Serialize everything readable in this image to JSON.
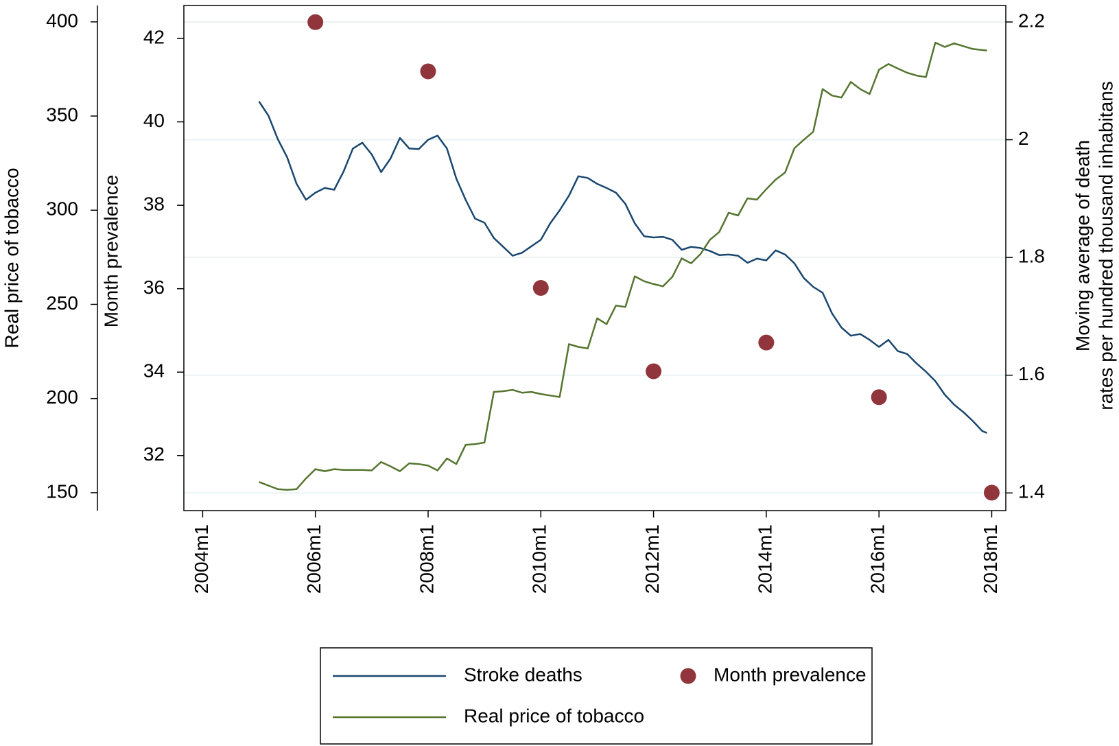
{
  "chart_data": {
    "type": "line",
    "ylabel": "Real price of tobacco",
    "y3label": "Month prevalence",
    "y2label": [
      "Moving average of death",
      "rates per hundred thousand inhabitans"
    ],
    "xlim": [
      524,
      699
    ],
    "xticks": [
      {
        "value": 528,
        "label": "2004m1"
      },
      {
        "value": 552,
        "label": "2006m1"
      },
      {
        "value": 576,
        "label": "2008m1"
      },
      {
        "value": 600,
        "label": "2010m1"
      },
      {
        "value": 624,
        "label": "2012m1"
      },
      {
        "value": 648,
        "label": "2014m1"
      },
      {
        "value": 672,
        "label": "2016m1"
      },
      {
        "value": 696,
        "label": "2018m1"
      }
    ],
    "ylim": [
      140.5,
      408.7
    ],
    "yticks": [
      150,
      200,
      250,
      300,
      350,
      400
    ],
    "y3lim": [
      30.68,
      42.79
    ],
    "y3ticks": [
      32,
      34,
      36,
      38,
      40,
      42
    ],
    "y2lim": [
      1.37,
      2.228
    ],
    "y2ticks": [
      1.4,
      1.6,
      1.8,
      2,
      2.2
    ],
    "grid": "y2",
    "series": [
      {
        "name": "Stroke deaths",
        "color": "#1a476f",
        "axis": "y2",
        "x": [
          540,
          542,
          544,
          546,
          548,
          550,
          552,
          554,
          556,
          558,
          560,
          562,
          564,
          566,
          568,
          570,
          572,
          574,
          576,
          578,
          580,
          582,
          584,
          586,
          588,
          590,
          592,
          594,
          596,
          598,
          600,
          602,
          604,
          606,
          608,
          610,
          612,
          614,
          616,
          618,
          620,
          622,
          624,
          626,
          628,
          630,
          632,
          634,
          636,
          638,
          640,
          642,
          644,
          646,
          648,
          650,
          652,
          654,
          656,
          658,
          660,
          662,
          664,
          666,
          668,
          670,
          672,
          674,
          676,
          678,
          680,
          682,
          684,
          686,
          688,
          690,
          692,
          694,
          695
        ],
        "values": [
          2.065,
          2.041,
          2.001,
          1.97,
          1.925,
          1.898,
          1.91,
          1.918,
          1.915,
          1.946,
          1.985,
          1.995,
          1.975,
          1.945,
          1.968,
          2.003,
          1.985,
          1.984,
          2.0,
          2.007,
          1.985,
          1.934,
          1.898,
          1.866,
          1.859,
          1.833,
          1.818,
          1.803,
          1.808,
          1.819,
          1.83,
          1.858,
          1.88,
          1.905,
          1.938,
          1.935,
          1.925,
          1.918,
          1.91,
          1.891,
          1.858,
          1.836,
          1.834,
          1.835,
          1.83,
          1.813,
          1.818,
          1.816,
          1.811,
          1.804,
          1.805,
          1.803,
          1.791,
          1.798,
          1.795,
          1.812,
          1.805,
          1.79,
          1.765,
          1.75,
          1.74,
          1.705,
          1.681,
          1.667,
          1.67,
          1.66,
          1.648,
          1.66,
          1.641,
          1.636,
          1.62,
          1.606,
          1.59,
          1.567,
          1.55,
          1.537,
          1.522,
          1.505,
          1.502
        ]
      },
      {
        "name": "Month prevalence",
        "color": "#90353b",
        "axis": "y3",
        "type": "scatter",
        "x": [
          552,
          576,
          600,
          624,
          648,
          672,
          696
        ],
        "values": [
          42.39,
          41.21,
          36.02,
          34.02,
          34.71,
          33.4,
          31.11
        ]
      },
      {
        "name": "Real price of tobacco",
        "color": "#55752f",
        "axis": "y",
        "x": [
          540,
          542,
          544,
          546,
          548,
          550,
          552,
          554,
          556,
          558,
          560,
          562,
          564,
          566,
          568,
          570,
          572,
          574,
          576,
          578,
          580,
          582,
          584,
          586,
          588,
          590,
          592,
          594,
          596,
          598,
          600,
          602,
          604,
          606,
          608,
          610,
          612,
          614,
          616,
          618,
          620,
          622,
          624,
          626,
          628,
          630,
          632,
          634,
          636,
          638,
          640,
          642,
          644,
          646,
          648,
          650,
          652,
          654,
          656,
          658,
          660,
          662,
          664,
          666,
          668,
          670,
          672,
          674,
          676,
          678,
          680,
          682,
          684,
          686,
          688,
          690,
          692,
          695
        ],
        "values": [
          155.7,
          153.8,
          151.9,
          151.5,
          151.9,
          157.6,
          162.5,
          161.4,
          162.5,
          162.1,
          162.1,
          162.1,
          161.8,
          166.3,
          164.0,
          161.4,
          165.6,
          165.2,
          164.4,
          161.8,
          168.2,
          165.2,
          175.4,
          175.8,
          176.6,
          203.5,
          203.9,
          204.6,
          203.1,
          203.5,
          202.4,
          201.6,
          200.8,
          228.9,
          227.4,
          226.6,
          242.6,
          239.5,
          249.4,
          248.6,
          264.9,
          262.3,
          260.8,
          259.6,
          264.6,
          274.4,
          271.8,
          276.7,
          284.3,
          288.5,
          298.7,
          297.2,
          306.3,
          305.6,
          311.2,
          316.2,
          320.0,
          332.9,
          337.4,
          341.6,
          364.3,
          360.9,
          359.8,
          368.1,
          364.3,
          361.7,
          374.6,
          377.6,
          375.3,
          373.0,
          371.5,
          370.7,
          389.0,
          386.7,
          388.6,
          387.1,
          385.6,
          384.8
        ]
      }
    ]
  }
}
